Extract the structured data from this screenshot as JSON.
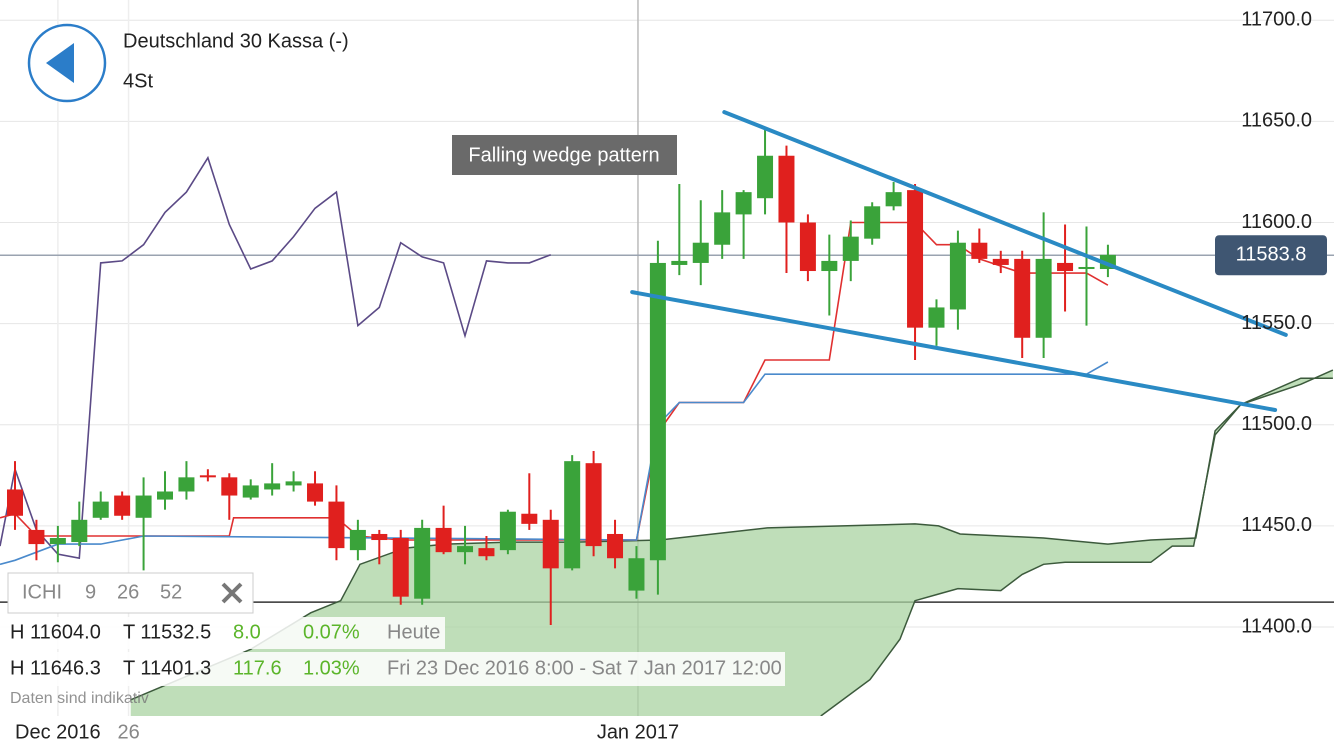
{
  "chart_data": {
    "type": "candlestick",
    "title": "Deutschland 30 Kassa (-)",
    "subtitle": "4St",
    "annotation": "Falling wedge pattern",
    "up_color": "#3aa33a",
    "down_color": "#e0201e",
    "x": [
      0,
      1,
      2,
      3,
      4,
      5,
      6,
      7,
      8,
      9,
      10,
      11,
      12,
      13,
      14,
      15,
      16,
      17,
      18,
      19,
      20,
      21,
      22,
      23,
      24,
      25,
      26,
      27,
      28,
      29,
      30,
      31,
      32,
      33,
      34,
      35,
      36,
      37,
      38,
      39,
      40,
      41,
      42,
      43,
      44,
      45,
      46,
      47,
      48,
      49,
      50,
      51
    ],
    "open": [
      11468,
      11448,
      11441,
      11442,
      11454,
      11465,
      11454,
      11463,
      11467,
      11475,
      11474,
      11464,
      11468,
      11470,
      11471,
      11462,
      11438,
      11446,
      11444,
      11414,
      11449,
      11437,
      11439,
      11438,
      11456,
      11453,
      11429,
      11481,
      11446,
      11418,
      11433,
      11579,
      11580,
      11589,
      11604,
      11612,
      11633,
      11600,
      11576,
      11581,
      11592,
      11608,
      11616,
      11548,
      11557,
      11590,
      11582,
      11582,
      11543,
      11580,
      11577,
      11577
    ],
    "high": [
      11482,
      11453,
      11450,
      11462,
      11467,
      11467,
      11474,
      11477,
      11482,
      11478,
      11476,
      11473,
      11481,
      11477,
      11477,
      11470,
      11453,
      11448,
      11448,
      11453,
      11460,
      11450,
      11445,
      11458,
      11476,
      11458,
      11485,
      11487,
      11453,
      11440,
      11591,
      11619,
      11611,
      11616,
      11616,
      11647,
      11638,
      11604,
      11594,
      11601,
      11610,
      11620,
      11619,
      11562,
      11596,
      11597,
      11586,
      11586,
      11605,
      11599,
      11598,
      11589
    ],
    "low": [
      11448,
      11433,
      11432,
      11440,
      11453,
      11453,
      11428,
      11458,
      11463,
      11472,
      11453,
      11463,
      11465,
      11467,
      11460,
      11433,
      11433,
      11431,
      11411,
      11411,
      11436,
      11431,
      11433,
      11436,
      11448,
      11401,
      11428,
      11435,
      11429,
      11414,
      11416,
      11574,
      11569,
      11582,
      11582,
      11604,
      11575,
      11571,
      11554,
      11571,
      11589,
      11606,
      11532,
      11539,
      11547,
      11580,
      11575,
      11533,
      11533,
      11556,
      11549,
      11573
    ],
    "close": [
      11455,
      11441,
      11444,
      11453,
      11462,
      11455,
      11465,
      11467,
      11474,
      11474,
      11465,
      11470,
      11471,
      11472,
      11462,
      11439,
      11448,
      11443,
      11415,
      11449,
      11437,
      11440,
      11435,
      11457,
      11451,
      11429,
      11482,
      11440,
      11434,
      11434,
      11580,
      11581,
      11590,
      11605,
      11615,
      11633,
      11600,
      11576,
      11581,
      11593,
      11608,
      11615,
      11548,
      11558,
      11590,
      11582,
      11579,
      11543,
      11582,
      11576,
      11578,
      11584
    ],
    "lines": [
      {
        "color": "#5b4a86",
        "x": [
          -0.7,
          0,
          1,
          2,
          3,
          4,
          5,
          6,
          7,
          8,
          9,
          10,
          11,
          12,
          13,
          14,
          15,
          16,
          17,
          18,
          19,
          20,
          21,
          22,
          23,
          24,
          25
        ],
        "values": [
          11440,
          11478,
          11448,
          11436,
          11434,
          11580,
          11581,
          11589,
          11605,
          11615,
          11632,
          11599,
          11577,
          11581,
          11593,
          11607,
          11615,
          11549,
          11558,
          11590,
          11583,
          11580,
          11544,
          11581,
          11580,
          11580,
          11584
        ]
      },
      {
        "color": "#e03030",
        "x": [
          -0.7,
          0,
          1,
          10,
          10.2,
          15,
          16,
          18,
          29,
          30,
          31,
          34,
          35,
          38,
          39,
          42,
          43,
          44,
          45,
          47,
          50,
          51
        ],
        "values": [
          11454,
          11456,
          11445,
          11445,
          11454,
          11454,
          11445,
          11443,
          11443,
          11496,
          11511,
          11511,
          11532,
          11532,
          11600,
          11600,
          11589,
          11589,
          11582,
          11575,
          11575,
          11569
        ]
      },
      {
        "color": "#4a8acc",
        "x": [
          -0.7,
          0,
          2,
          4,
          6,
          29,
          30,
          31,
          34,
          35,
          50,
          51
        ],
        "values": [
          11431,
          11433,
          11441,
          11441,
          11445,
          11443,
          11500,
          11511,
          11511,
          11525,
          11525,
          11531
        ]
      }
    ],
    "cloud": {
      "color": "#a9d3a2",
      "edge_color": "#3c5a3c",
      "upper": {
        "x": [
          5.4,
          11,
          13.8,
          15.2,
          16.1,
          18.2,
          20.1,
          23.1,
          26.1,
          30.1,
          35.1,
          42,
          43.1,
          44.1,
          48,
          51,
          53,
          55.1,
          56,
          57.2,
          60,
          61.5
        ],
        "values": [
          11364,
          11389,
          11407,
          11413,
          11431,
          11439,
          11441,
          11442,
          11442,
          11443,
          11449,
          11451,
          11450,
          11446,
          11444,
          11441,
          11443,
          11444,
          11497,
          11510,
          11520,
          11527
        ]
      },
      "lower": {
        "x": [
          37.6,
          39.9,
          41.3,
          42,
          43,
          44,
          46,
          47,
          48,
          49,
          53,
          54,
          55,
          56,
          57.2,
          60,
          61.5
        ],
        "values": [
          11356,
          11374,
          11394,
          11413,
          11416,
          11419,
          11418,
          11426,
          11431,
          11432,
          11432,
          11440,
          11440,
          11495,
          11510,
          11523,
          11523
        ]
      }
    },
    "trendlines": {
      "color": "#2a8ac4",
      "lines": [
        {
          "x": [
            33.1,
            59.3
          ],
          "values": [
            11654.6,
            11544.4
          ]
        },
        {
          "x": [
            28.8,
            58.8
          ],
          "values": [
            11565.6,
            11507.3
          ]
        }
      ]
    },
    "current_price": 11583.8,
    "horizontal_line": 11412.3,
    "xlim": [
      -0.7,
      61.55
    ],
    "ylim": [
      11356,
      11710
    ],
    "xticks": [
      {
        "value": 2,
        "label": "Dec 2016"
      },
      {
        "value": 5.3,
        "label": "26"
      },
      {
        "value": 29.07,
        "label": "Jan 2017"
      }
    ],
    "yticks": [
      {
        "value": 11400,
        "label": "11400.0"
      },
      {
        "value": 11450,
        "label": "11450.0"
      },
      {
        "value": 11500,
        "label": "11500.0"
      },
      {
        "value": 11550,
        "label": "11550.0"
      },
      {
        "value": 11600,
        "label": "11600.0"
      },
      {
        "value": 11650,
        "label": "11650.0"
      },
      {
        "value": 11700,
        "label": "11700.0"
      }
    ],
    "grid": true
  },
  "info": {
    "indicator": "ICHI",
    "params": [
      9,
      26,
      52
    ],
    "rows": [
      [
        "H 11604.0",
        "T 11532.5",
        "8.0",
        "0.07%",
        "Heute"
      ],
      [
        "H 11646.3",
        "T 11401.3",
        "117.6",
        "1.03%",
        "Fri 23 Dec 2016 8:00 - Sat 7 Jan 2017 12:00"
      ]
    ],
    "note": "Daten sind indikativ"
  }
}
